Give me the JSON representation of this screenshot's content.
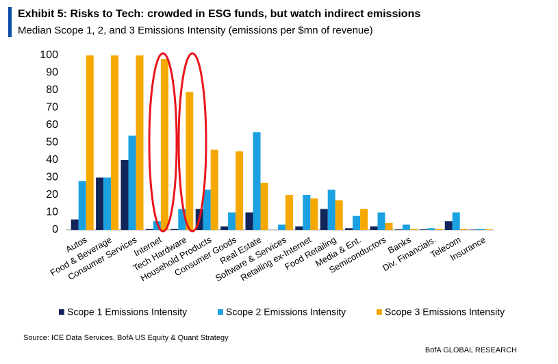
{
  "chart_data": {
    "type": "bar",
    "title": "Exhibit 5: Risks to Tech: crowded in ESG funds, but watch indirect emissions",
    "subtitle": "Median Scope 1, 2, and 3 Emissions Intensity (emissions per $mn of revenue)",
    "source": "Source: ICE Data Services, BofA US Equity & Quant Strategy",
    "brand": "BofA GLOBAL RESEARCH",
    "categories": [
      "Autos",
      "Food & Beverage",
      "Consumer Services",
      "Internet",
      "Tech Hardware",
      "Household Products",
      "Consumer Goods",
      "Real Estate",
      "Software & Services",
      "Retailing ex-Internet",
      "Food Retailing",
      "Media & Ent.",
      "Semiconductors",
      "Banks",
      "Div. Financials.",
      "Telecom",
      "Insurance"
    ],
    "series": [
      {
        "name": "Scope 1 Emissions Intensity",
        "color": "#13265c",
        "values": [
          6,
          30,
          40,
          0.5,
          0.5,
          12,
          2,
          10,
          0,
          2,
          12,
          1,
          2,
          0.3,
          0.3,
          5,
          0.2
        ]
      },
      {
        "name": "Scope 2 Emissions Intensity",
        "color": "#1ba1e2",
        "values": [
          28,
          30,
          54,
          5,
          12,
          23,
          10,
          56,
          3,
          20,
          23,
          8,
          10,
          3,
          1,
          10,
          0.5
        ]
      },
      {
        "name": "Scope 3 Emissions Intensity",
        "color": "#f5a800",
        "values": [
          100,
          100,
          100,
          98,
          79,
          46,
          45,
          27,
          20,
          18,
          17,
          12,
          4,
          0.5,
          0.5,
          0.5,
          0.3
        ]
      }
    ],
    "ylim": [
      0,
      100
    ],
    "yticks": [
      0,
      10,
      20,
      30,
      40,
      50,
      60,
      70,
      80,
      90,
      100
    ],
    "grid": false
  }
}
